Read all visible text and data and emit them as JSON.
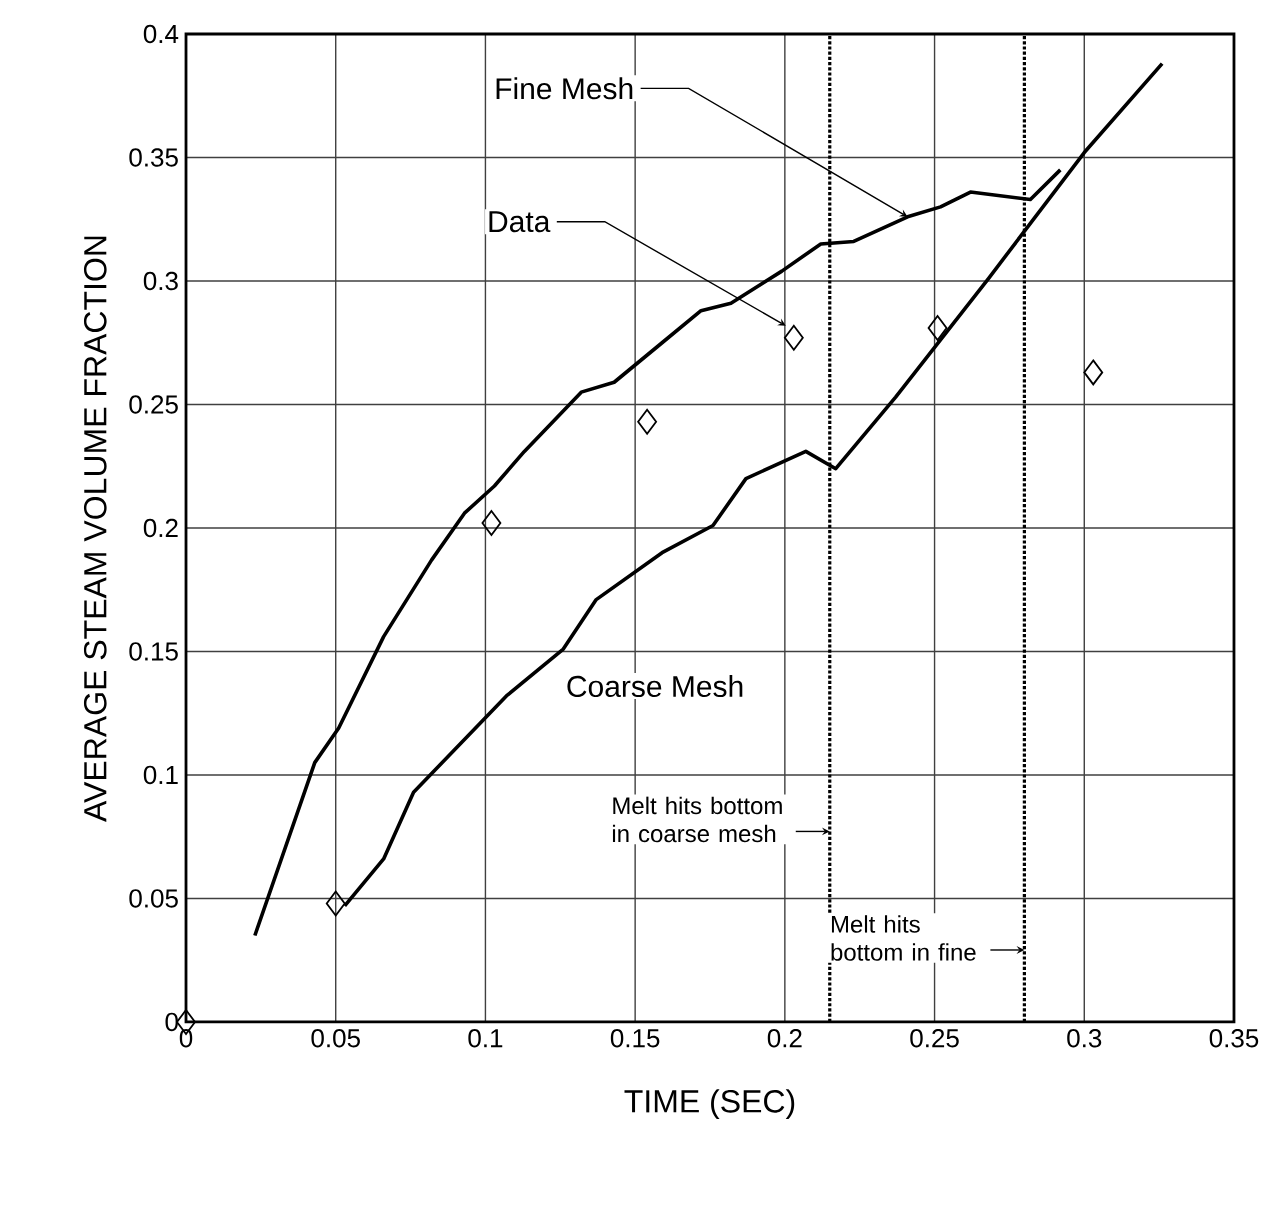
{
  "chart_data": {
    "type": "line",
    "xlabel": "TIME (SEC)",
    "ylabel": "AVERAGE STEAM VOLUME FRACTION",
    "xlim": [
      0,
      0.35
    ],
    "ylim": [
      0,
      0.4
    ],
    "xticks": [
      0,
      0.05,
      0.1,
      0.15,
      0.2,
      0.25,
      0.3,
      0.35
    ],
    "yticks": [
      0,
      0.05,
      0.1,
      0.15,
      0.2,
      0.25,
      0.3,
      0.35,
      0.4
    ],
    "grid": true,
    "series": [
      {
        "name": "Fine Mesh",
        "color": "#000000",
        "marker": "none",
        "x": [
          0.023,
          0.043,
          0.051,
          0.066,
          0.082,
          0.093,
          0.103,
          0.113,
          0.132,
          0.143,
          0.159,
          0.172,
          0.182,
          0.199,
          0.212,
          0.223,
          0.241,
          0.252,
          0.262,
          0.282,
          0.292
        ],
        "values": [
          0.035,
          0.105,
          0.119,
          0.156,
          0.187,
          0.206,
          0.217,
          0.231,
          0.255,
          0.259,
          0.275,
          0.288,
          0.291,
          0.304,
          0.315,
          0.316,
          0.326,
          0.33,
          0.336,
          0.333,
          0.345
        ]
      },
      {
        "name": "Coarse Mesh",
        "color": "#000000",
        "marker": "none",
        "x": [
          0.053,
          0.066,
          0.076,
          0.107,
          0.126,
          0.137,
          0.159,
          0.176,
          0.187,
          0.207,
          0.217,
          0.237,
          0.268,
          0.3,
          0.326
        ],
        "values": [
          0.047,
          0.066,
          0.093,
          0.132,
          0.151,
          0.171,
          0.19,
          0.201,
          0.22,
          0.231,
          0.224,
          0.253,
          0.301,
          0.352,
          0.388
        ]
      },
      {
        "name": "Data",
        "type": "scatter",
        "color": "#000000",
        "marker": "diamond",
        "x": [
          0,
          0.05,
          0.102,
          0.154,
          0.203,
          0.251,
          0.303
        ],
        "values": [
          0,
          0.048,
          0.202,
          0.243,
          0.277,
          0.281,
          0.263
        ]
      }
    ],
    "ref_lines": [
      {
        "axis": "x",
        "value": 0.215,
        "label": "Melt hits bottom in coarse mesh",
        "line_style": "dotted",
        "color": "#000000"
      },
      {
        "axis": "x",
        "value": 0.28,
        "label": "Melt hits bottom in fine",
        "line_style": "dotted",
        "color": "#000000"
      }
    ]
  }
}
